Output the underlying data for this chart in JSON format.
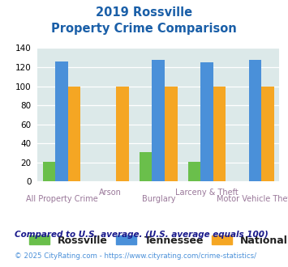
{
  "title_line1": "2019 Rossville",
  "title_line2": "Property Crime Comparison",
  "categories": [
    "All Property Crime",
    "Arson",
    "Burglary",
    "Larceny & Theft",
    "Motor Vehicle Theft"
  ],
  "rossville": [
    21,
    0,
    31,
    21,
    0
  ],
  "tennessee": [
    126,
    0,
    128,
    125,
    128
  ],
  "national": [
    100,
    100,
    100,
    100,
    100
  ],
  "colors": {
    "rossville": "#6abf4b",
    "tennessee": "#4a90d9",
    "national": "#f5a623"
  },
  "ylim": [
    0,
    140
  ],
  "yticks": [
    0,
    20,
    40,
    60,
    80,
    100,
    120,
    140
  ],
  "legend_labels": [
    "Rossville",
    "Tennessee",
    "National"
  ],
  "footnote1": "Compared to U.S. average. (U.S. average equals 100)",
  "footnote2": "© 2025 CityRating.com - https://www.cityrating.com/crime-statistics/",
  "title_color": "#1a5fa8",
  "footnote1_color": "#1a1a8c",
  "footnote2_color": "#4a90d9",
  "xlabel_color": "#997799",
  "plot_bg": "#dce9e9"
}
